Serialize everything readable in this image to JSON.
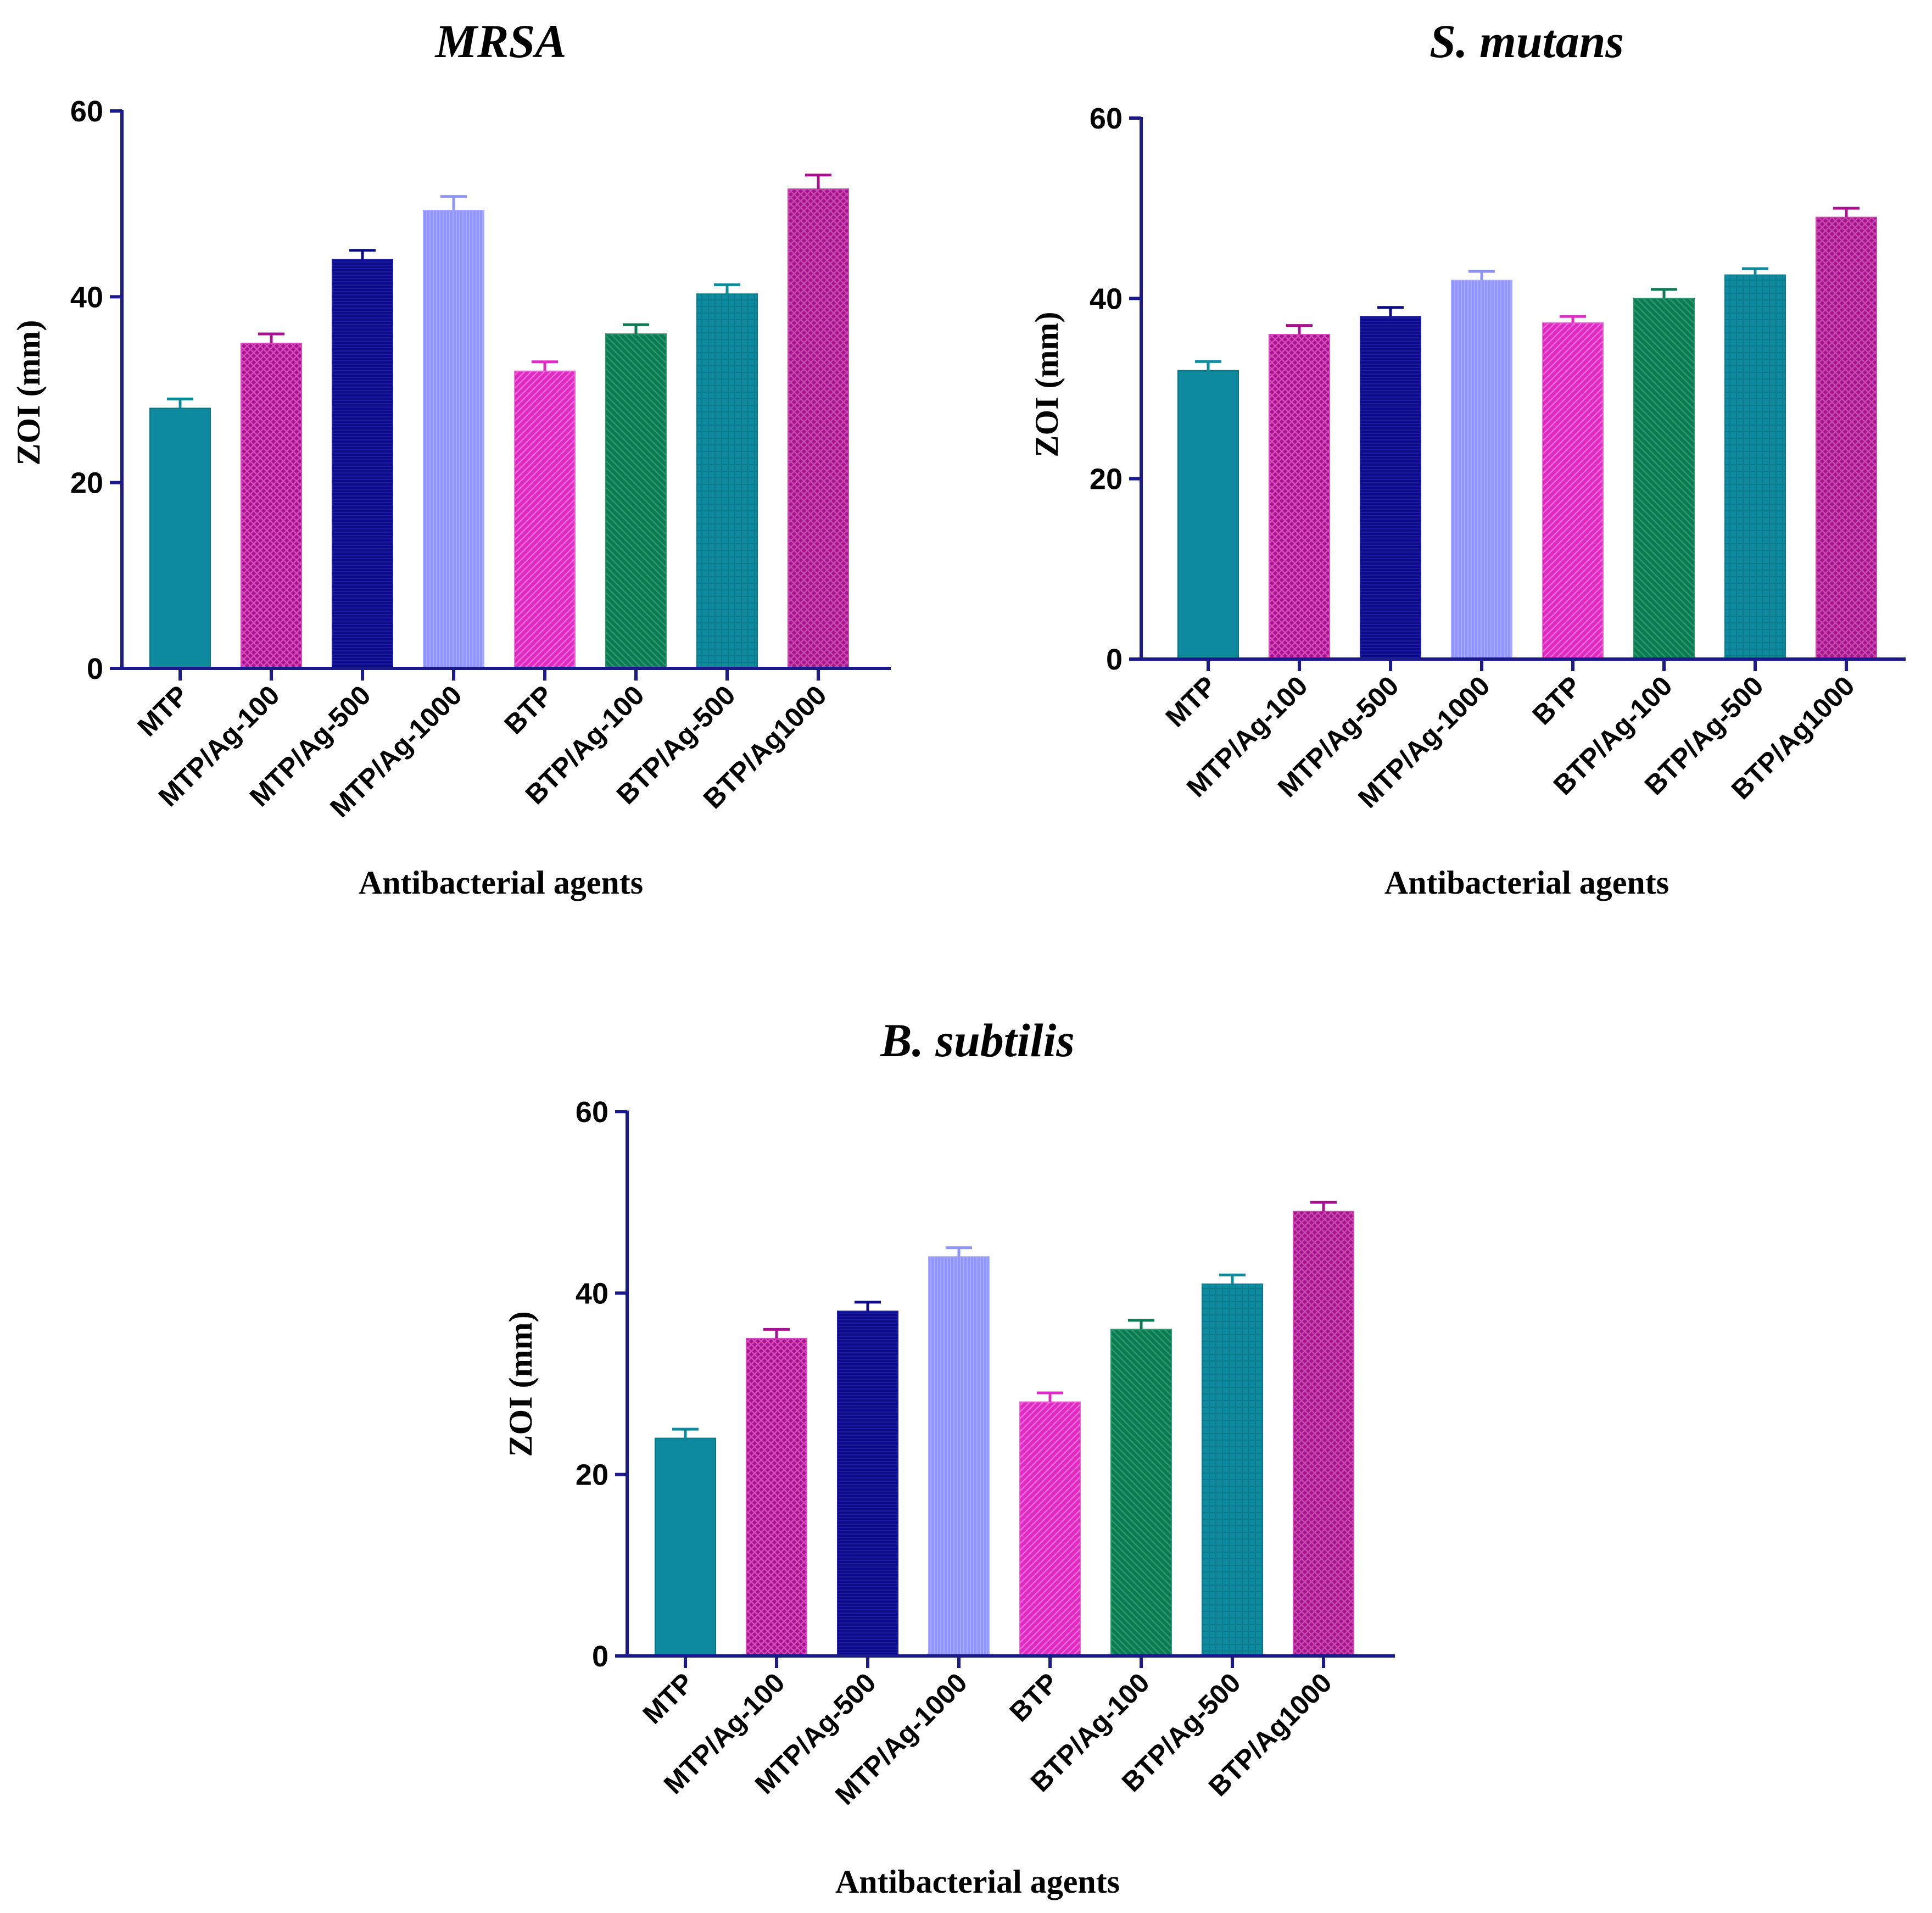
{
  "chart_data": [
    {
      "type": "bar",
      "title": "MRSA",
      "xlabel": "Antibacterial agents",
      "ylabel": "ZOI (mm)",
      "ylim": [
        0,
        60
      ],
      "yticks": [
        0,
        20,
        40,
        60
      ],
      "categories": [
        "MTP",
        "MTP/Ag-100",
        "MTP/Ag-500",
        "MTP/Ag-1000",
        "BTP",
        "BTP/Ag-100",
        "BTP/Ag-500",
        "BTP/Ag1000"
      ],
      "values": [
        28,
        35,
        44,
        49.3,
        32,
        36,
        40.3,
        51.6
      ],
      "errors": [
        1,
        1,
        1,
        1.5,
        1,
        1,
        1,
        1.5
      ]
    },
    {
      "type": "bar",
      "title": "S. mutans",
      "xlabel": "Antibacterial agents",
      "ylabel": "ZOI (mm)",
      "ylim": [
        0,
        60
      ],
      "yticks": [
        0,
        20,
        40,
        60
      ],
      "categories": [
        "MTP",
        "MTP/Ag-100",
        "MTP/Ag-500",
        "MTP/Ag-1000",
        "BTP",
        "BTP/Ag-100",
        "BTP/Ag-500",
        "BTP/Ag1000"
      ],
      "values": [
        32,
        36,
        38,
        42,
        37.3,
        40,
        42.6,
        49
      ],
      "errors": [
        1,
        1,
        1,
        1,
        0.7,
        1,
        0.7,
        1
      ]
    },
    {
      "type": "bar",
      "title": "B. subtilis",
      "xlabel": "Antibacterial agents",
      "ylabel": "ZOI (mm)",
      "ylim": [
        0,
        60
      ],
      "yticks": [
        0,
        20,
        40,
        60
      ],
      "categories": [
        "MTP",
        "MTP/Ag-100",
        "MTP/Ag-500",
        "MTP/Ag-1000",
        "BTP",
        "BTP/Ag-100",
        "BTP/Ag-500",
        "BTP/Ag1000"
      ],
      "values": [
        24,
        35,
        38,
        44,
        28,
        36,
        41,
        49
      ],
      "errors": [
        1,
        1,
        1,
        1,
        1,
        1,
        1,
        1
      ]
    }
  ],
  "colors": {
    "axis": "#1a1a8c",
    "bars": [
      "#0e8a9e",
      "#a8128e",
      "#0b0b85",
      "#8f94ff",
      "#e02ac4",
      "#0c7a52",
      "#0e8a9e",
      "#a8128e"
    ],
    "hatch": [
      "#0a7687",
      "#d64cbd",
      "#1c1ca8",
      "#a6abff",
      "#f06bd8",
      "#2a9b6d",
      "#0a7a8c",
      "#c54cae"
    ]
  }
}
